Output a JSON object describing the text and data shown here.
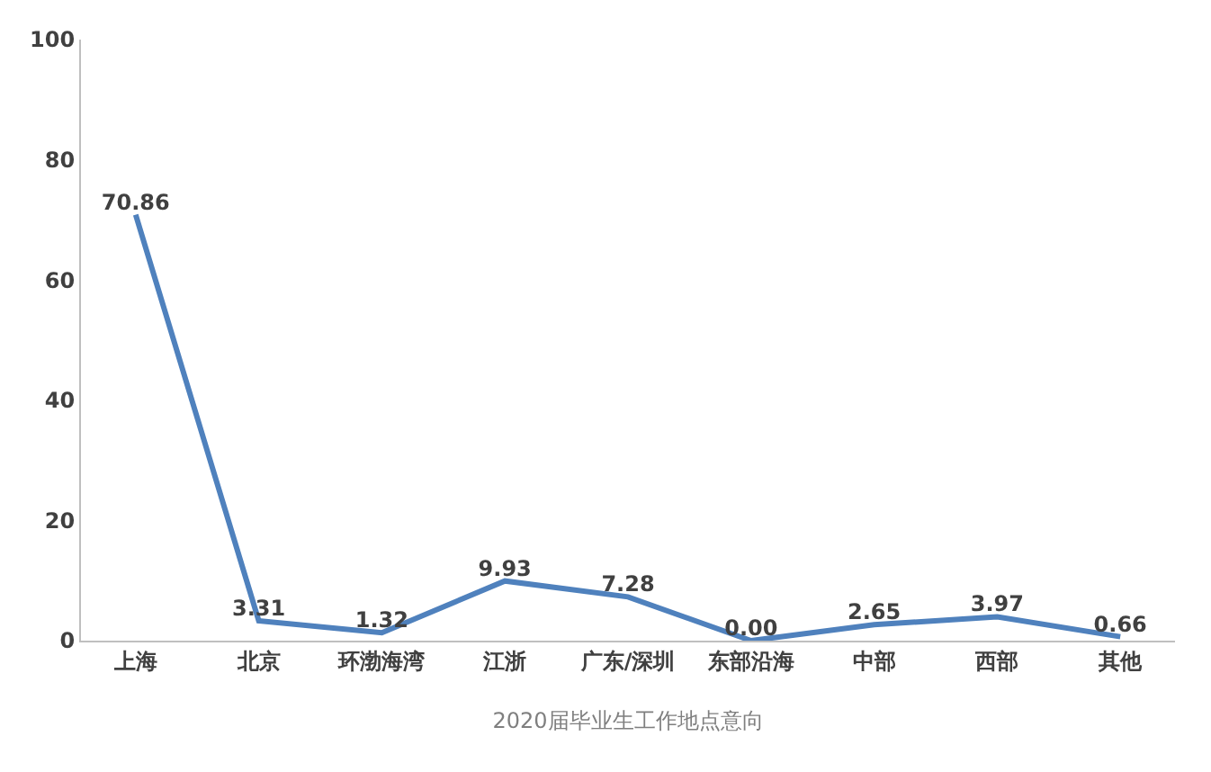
{
  "chart_data": {
    "type": "line",
    "xlabel": "2020届毕业生工作地点意向",
    "categories": [
      "上海",
      "北京",
      "环渤海湾",
      "江浙",
      "广东/深圳",
      "东部沿海",
      "中部",
      "西部",
      "其他"
    ],
    "series": [
      {
        "color": "#4f81bd",
        "values": [
          70.86,
          3.31,
          1.32,
          9.93,
          7.28,
          0.0,
          2.65,
          3.97,
          0.66
        ]
      }
    ],
    "value_labels": [
      "70.86",
      "3.31",
      "1.32",
      "9.93",
      "7.28",
      "0.00",
      "2.65",
      "3.97",
      "0.66"
    ],
    "ylim": [
      0,
      100
    ],
    "yticks": [
      0,
      20,
      40,
      60,
      80,
      100
    ],
    "marker": "none",
    "line_style": "solid"
  }
}
